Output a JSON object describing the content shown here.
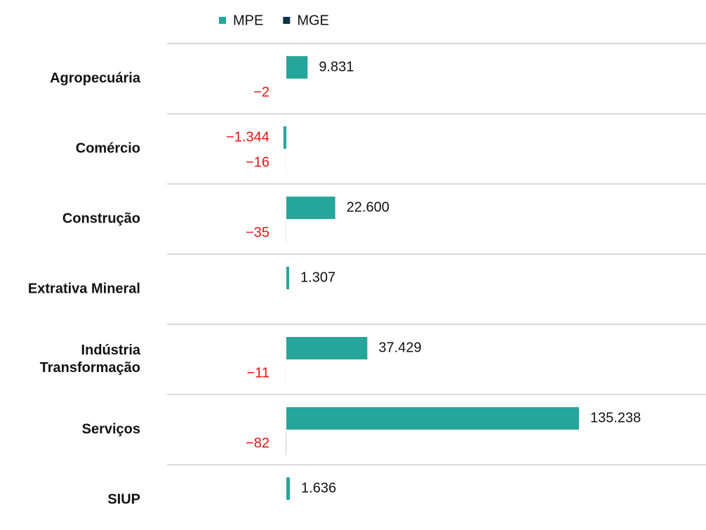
{
  "chart_data": {
    "type": "bar",
    "orientation": "horizontal",
    "categories": [
      "Agropecuária",
      "Comércio",
      "Construção",
      "Extrativa Mineral",
      "Indústria Transformação",
      "Serviços",
      "SIUP"
    ],
    "series": [
      {
        "name": "MPE",
        "color": "#26a69a",
        "values": [
          9831,
          -1344,
          22600,
          1307,
          37429,
          135238,
          1636
        ],
        "value_labels": [
          "9.831",
          "−1.344",
          "22.600",
          "1.307",
          "37.429",
          "135.238",
          "1.636"
        ]
      },
      {
        "name": "MGE",
        "color": "#0d3349",
        "values": [
          -2,
          -16,
          -35,
          null,
          -11,
          -82,
          null
        ],
        "value_labels": [
          "−2",
          "−16",
          "−35",
          null,
          "−11",
          "−82",
          null
        ]
      }
    ],
    "negative_label_color": "#ee1111",
    "grid": true
  }
}
